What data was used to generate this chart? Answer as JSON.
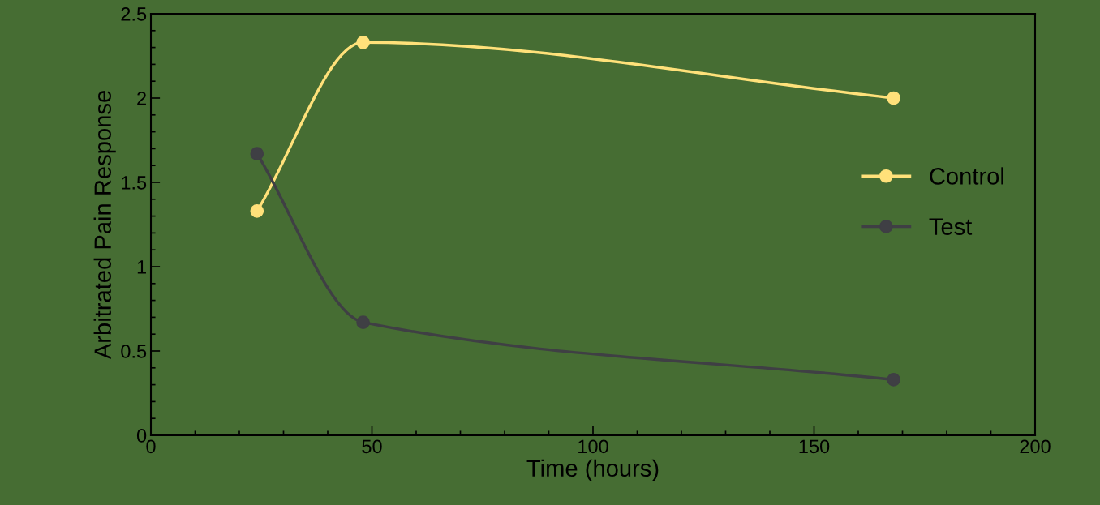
{
  "chart_data": {
    "type": "line",
    "xlabel": "Time (hours)",
    "ylabel": "Arbitrated Pain Response",
    "x": [
      24,
      48,
      168
    ],
    "series": [
      {
        "name": "Control",
        "color": "#ffe17a",
        "values": [
          1.33,
          2.33,
          2.0
        ]
      },
      {
        "name": "Test",
        "color": "#3f3f44",
        "values": [
          1.67,
          0.67,
          0.33
        ]
      }
    ],
    "xlim": [
      0,
      200
    ],
    "xticks": [
      0,
      50,
      100,
      150,
      200
    ],
    "ylim": [
      0,
      2.5
    ],
    "yticks": [
      0,
      0.5,
      1,
      1.5,
      2,
      2.5
    ],
    "grid": false,
    "legend": "right",
    "marker": "circle",
    "line_style": "solid"
  }
}
